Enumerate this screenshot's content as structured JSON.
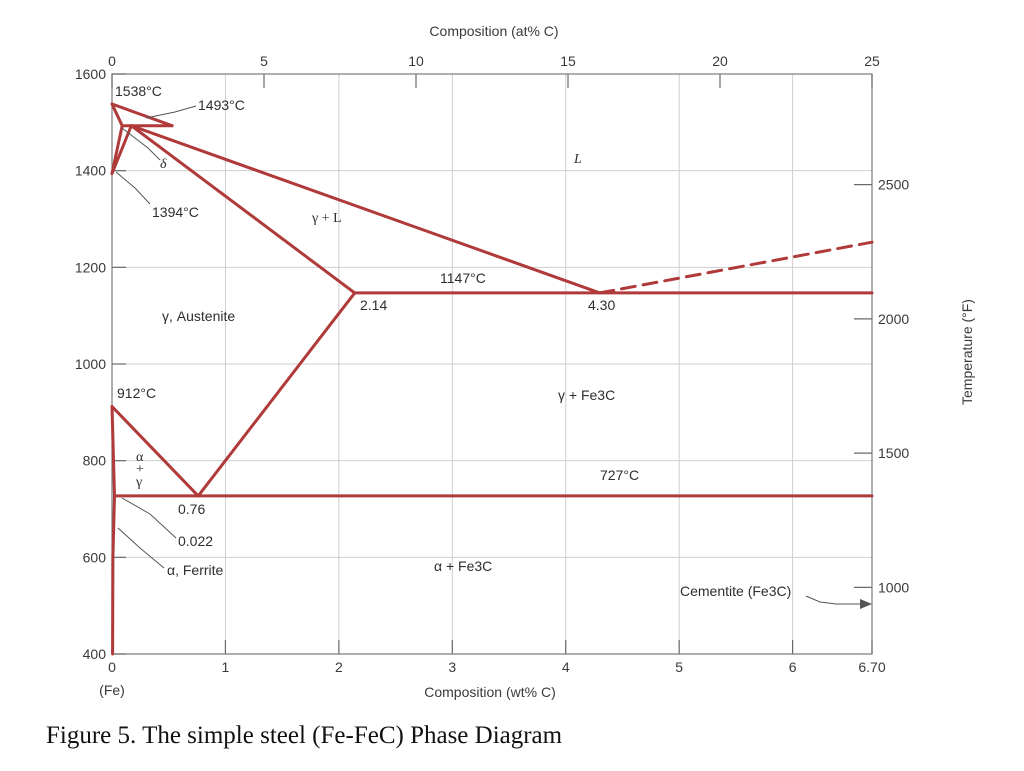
{
  "chart_data": {
    "type": "phase-diagram",
    "caption": "Figure 5. The simple steel (Fe-FeC) Phase Diagram",
    "bottom_axis": {
      "title": "Composition (wt% C)",
      "range": [
        0,
        6.7
      ],
      "ticks": [
        "0",
        "1",
        "2",
        "3",
        "4",
        "5",
        "6",
        "6.70"
      ],
      "origin_label": "(Fe)"
    },
    "top_axis": {
      "title": "Composition (at% C)",
      "range": [
        0,
        25
      ],
      "ticks": [
        "0",
        "5",
        "10",
        "15",
        "20",
        "25"
      ]
    },
    "left_axis": {
      "unit": "°C",
      "range": [
        400,
        1600
      ],
      "ticks": [
        "400",
        "600",
        "800",
        "1000",
        "1200",
        "1400",
        "1600"
      ]
    },
    "right_axis": {
      "title": "Temperature (°F)",
      "ticks": [
        "1000",
        "1500",
        "2000",
        "2500"
      ]
    },
    "grid": true,
    "phase_boundaries": {
      "liquidus_delta": [
        [
          0,
          1538
        ],
        [
          0.53,
          1493
        ]
      ],
      "peritectic_line": [
        [
          0.09,
          1493
        ],
        [
          0.53,
          1493
        ]
      ],
      "liquidus_to_eutectic": [
        [
          0.17,
          1493
        ],
        [
          4.3,
          1147
        ]
      ],
      "solidus_gamma": [
        [
          0.17,
          1493
        ],
        [
          2.14,
          1147
        ]
      ],
      "delta_solvus": [
        [
          0,
          1538
        ],
        [
          0.09,
          1493
        ],
        [
          0,
          1394
        ]
      ],
      "delta_gamma": [
        [
          0,
          1394
        ],
        [
          0.17,
          1493
        ]
      ],
      "eutectic_line": [
        [
          2.14,
          1147
        ],
        [
          6.7,
          1147
        ]
      ],
      "liquidus_cementite_dashed": [
        [
          4.3,
          1147
        ],
        [
          6.7,
          1252
        ]
      ],
      "acm_line": [
        [
          2.14,
          1147
        ],
        [
          0.76,
          727
        ]
      ],
      "a3_line": [
        [
          0,
          912
        ],
        [
          0.76,
          727
        ]
      ],
      "alpha_gamma": [
        [
          0,
          912
        ],
        [
          0.022,
          727
        ]
      ],
      "eutectoid_line": [
        [
          0.022,
          727
        ],
        [
          6.7,
          727
        ]
      ],
      "ferrite_solvus": [
        [
          0.022,
          727
        ],
        [
          0.008,
          600
        ],
        [
          0.005,
          400
        ]
      ]
    },
    "point_labels": [
      {
        "id": "t1538",
        "text": "1538°C"
      },
      {
        "id": "t1493",
        "text": "1493°C"
      },
      {
        "id": "delta",
        "text": "δ"
      },
      {
        "id": "t1394",
        "text": "1394°C"
      },
      {
        "id": "t912",
        "text": "912°C"
      },
      {
        "id": "t1147",
        "text": "1147°C"
      },
      {
        "id": "c214",
        "text": "2.14"
      },
      {
        "id": "c430",
        "text": "4.30"
      },
      {
        "id": "t727",
        "text": "727°C"
      },
      {
        "id": "c076",
        "text": "0.76"
      },
      {
        "id": "c0022",
        "text": "0.022"
      }
    ],
    "regions": {
      "liquid": "L",
      "gamma_liquid": "γ + L",
      "austenite": "γ, Austenite",
      "gamma_fe3c": "γ + Fe3C",
      "alpha_gamma_a": "α",
      "alpha_gamma_plus": "+",
      "alpha_gamma_g": "γ",
      "ferrite": "α, Ferrite",
      "alpha_fe3c": "α + Fe3C",
      "cementite": "Cementite (Fe3C)"
    },
    "phase_color": "#b03a3a"
  }
}
